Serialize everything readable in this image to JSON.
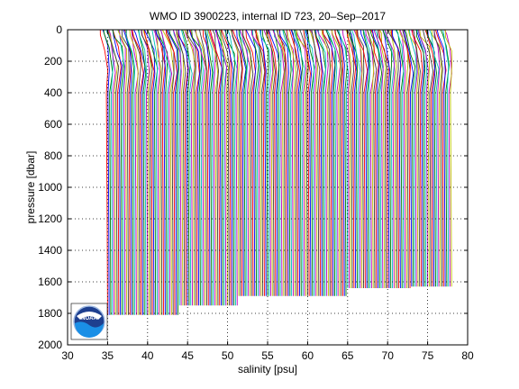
{
  "chart_data": {
    "type": "line",
    "title": "WMO ID 3900223, internal ID 723, 20–Sep–2017",
    "xlabel": "salinity [psu]",
    "ylabel": "pressure [dbar]",
    "xlim": [
      30,
      80
    ],
    "ylim": [
      0,
      2000
    ],
    "y_reversed": true,
    "grid": true,
    "x_ticks": [
      30,
      35,
      40,
      45,
      50,
      55,
      60,
      65,
      70,
      75,
      80
    ],
    "y_ticks": [
      0,
      200,
      400,
      600,
      800,
      1000,
      1200,
      1400,
      1600,
      1800,
      2000
    ],
    "x_tick_labels": [
      "30",
      "35",
      "40",
      "45",
      "50",
      "55",
      "60",
      "65",
      "70",
      "75",
      "80"
    ],
    "y_tick_labels": [
      "0",
      "200",
      "400",
      "600",
      "800",
      "1000",
      "1200",
      "1400",
      "1600",
      "1800",
      "2000"
    ],
    "series_colors": [
      "#ff0000",
      "#0000ff",
      "#008000",
      "#00bfbf",
      "#bf00bf",
      "#bfbf00",
      "#404040"
    ],
    "profiles": {
      "description_note": "",
      "count": 220,
      "x_offset_step": 0.2,
      "base_salinity_start": 34.0,
      "groups": [
        {
          "x_start": 34.0,
          "x_end": 43.0,
          "max_pressure": 1810
        },
        {
          "x_start": 43.0,
          "x_end": 50.4,
          "max_pressure": 1750
        },
        {
          "x_start": 50.4,
          "x_end": 64.0,
          "max_pressure": 1690
        },
        {
          "x_start": 64.0,
          "x_end": 72.0,
          "max_pressure": 1640
        },
        {
          "x_start": 72.0,
          "x_end": 77.2,
          "max_pressure": 1630
        }
      ]
    },
    "logo": "noaa-logo"
  },
  "logo_text": "NOAA"
}
